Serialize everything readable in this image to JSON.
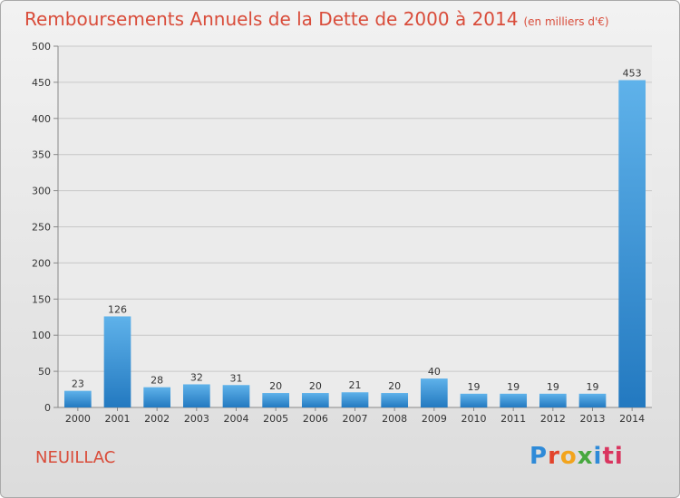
{
  "header": {
    "title": "Remboursements Annuels de la Dette de 2000 à 2014",
    "subtitle": "(en milliers d'€)"
  },
  "footer": {
    "commune": "NEUILLAC",
    "logo_letters": [
      "P",
      "r",
      "o",
      "x",
      "i",
      "ti"
    ]
  },
  "colors": {
    "title": "#d94c3a",
    "bar_top": "#5fb2ea",
    "bar_bottom": "#2379c0",
    "axis": "#888888",
    "grid": "#c8c8c8"
  },
  "chart_data": {
    "type": "bar",
    "title": "Remboursements Annuels de la Dette de 2000 à 2014",
    "categories": [
      "2000",
      "2001",
      "2002",
      "2003",
      "2004",
      "2005",
      "2006",
      "2007",
      "2008",
      "2009",
      "2010",
      "2011",
      "2012",
      "2013",
      "2014"
    ],
    "values": [
      23,
      126,
      28,
      32,
      31,
      20,
      20,
      21,
      20,
      40,
      19,
      19,
      19,
      19,
      453
    ],
    "ylim": [
      0,
      500
    ],
    "yticks": [
      0,
      50,
      100,
      150,
      200,
      250,
      300,
      350,
      400,
      450,
      500
    ],
    "xlabel": "",
    "ylabel": "",
    "grid": true,
    "data_labels": true
  }
}
